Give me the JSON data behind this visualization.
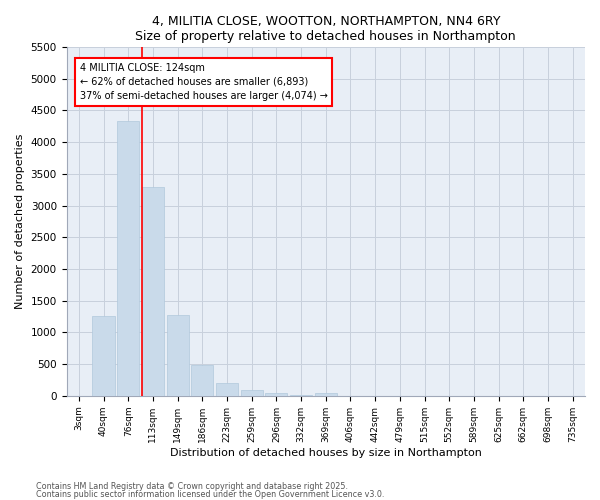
{
  "title": "4, MILITIA CLOSE, WOOTTON, NORTHAMPTON, NN4 6RY",
  "subtitle": "Size of property relative to detached houses in Northampton",
  "xlabel": "Distribution of detached houses by size in Northampton",
  "ylabel": "Number of detached properties",
  "bar_color": "#c9daea",
  "bar_edgecolor": "#b0c8dc",
  "background_color": "#ffffff",
  "plot_bg_color": "#e8eef6",
  "grid_color": "#c8d0dc",
  "categories": [
    "3sqm",
    "40sqm",
    "76sqm",
    "113sqm",
    "149sqm",
    "186sqm",
    "223sqm",
    "259sqm",
    "296sqm",
    "332sqm",
    "369sqm",
    "406sqm",
    "442sqm",
    "479sqm",
    "515sqm",
    "552sqm",
    "589sqm",
    "625sqm",
    "662sqm",
    "698sqm",
    "735sqm"
  ],
  "values": [
    0,
    1260,
    4340,
    3300,
    1270,
    490,
    195,
    90,
    45,
    10,
    45,
    0,
    0,
    0,
    0,
    0,
    0,
    0,
    0,
    0,
    0
  ],
  "ylim": [
    0,
    5500
  ],
  "yticks": [
    0,
    500,
    1000,
    1500,
    2000,
    2500,
    3000,
    3500,
    4000,
    4500,
    5000,
    5500
  ],
  "vline_position": 2.575,
  "annotation_text": "4 MILITIA CLOSE: 124sqm\n← 62% of detached houses are smaller (6,893)\n37% of semi-detached houses are larger (4,074) →",
  "footnote1": "Contains HM Land Registry data © Crown copyright and database right 2025.",
  "footnote2": "Contains public sector information licensed under the Open Government Licence v3.0."
}
